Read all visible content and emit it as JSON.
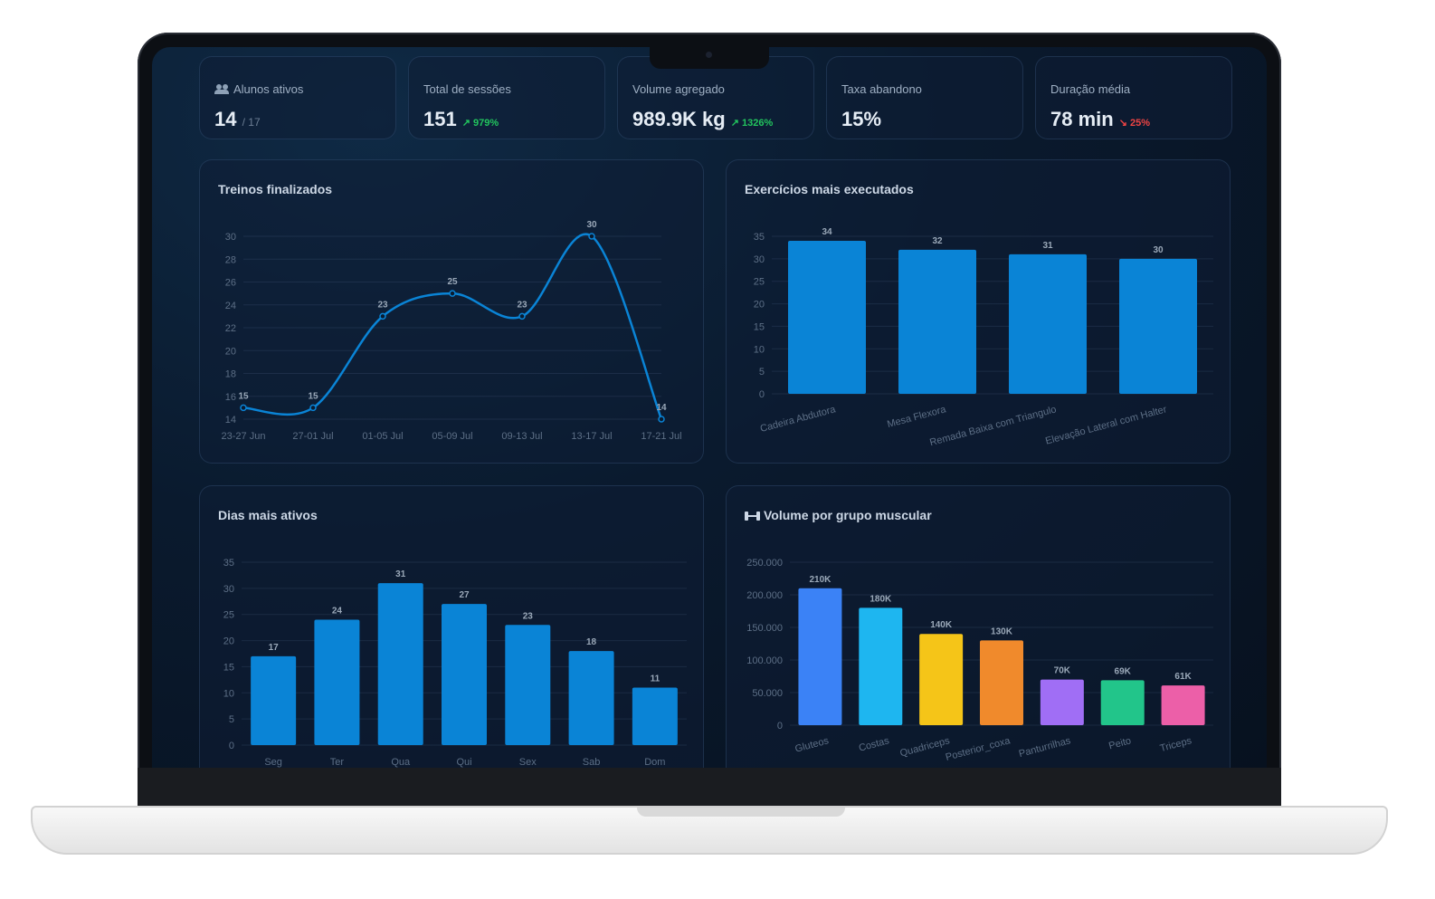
{
  "stats": [
    {
      "label": "Alunos ativos",
      "value": "14",
      "sub": "/ 17",
      "delta": "",
      "trend": "none",
      "icon": "users-icon"
    },
    {
      "label": "Total de sessões",
      "value": "151",
      "sub": "",
      "delta": "979%",
      "trend": "up"
    },
    {
      "label": "Volume agregado",
      "value": "989.9K kg",
      "sub": "",
      "delta": "1326%",
      "trend": "up"
    },
    {
      "label": "Taxa abandono",
      "value": "15%",
      "sub": "",
      "delta": "",
      "trend": "none"
    },
    {
      "label": "Duração média",
      "value": "78 min",
      "sub": "",
      "delta": "25%",
      "trend": "down"
    }
  ],
  "colors": {
    "accent": "#0a84d6",
    "line": "#0a84d6",
    "up": "#22c55e",
    "down": "#ef4444"
  },
  "chart_data": [
    {
      "type": "line",
      "title": "Treinos finalizados",
      "categories": [
        "23-27 Jun",
        "27-01 Jul",
        "01-05 Jul",
        "05-09 Jul",
        "09-13 Jul",
        "13-17 Jul",
        "17-21 Jul"
      ],
      "values": [
        15,
        15,
        23,
        25,
        23,
        30,
        14
      ],
      "ylim": [
        14,
        30
      ],
      "yticks": [
        14,
        16,
        18,
        20,
        22,
        24,
        26,
        28,
        30
      ],
      "grid": true
    },
    {
      "type": "bar",
      "title": "Exercícios mais executados",
      "categories": [
        "Cadeira Abdutora",
        "Mesa Flexora",
        "Remada Baixa com Triangulo",
        "Elevação Lateral com Halter"
      ],
      "values": [
        34,
        32,
        31,
        30
      ],
      "ylim": [
        0,
        35
      ],
      "yticks": [
        0,
        5,
        10,
        15,
        20,
        25,
        30,
        35
      ],
      "grid": true
    },
    {
      "type": "bar",
      "title": "Dias mais ativos",
      "categories": [
        "Seg",
        "Ter",
        "Qua",
        "Qui",
        "Sex",
        "Sab",
        "Dom"
      ],
      "values": [
        17,
        24,
        31,
        27,
        23,
        18,
        11
      ],
      "ylim": [
        0,
        35
      ],
      "yticks": [
        0,
        5,
        10,
        15,
        20,
        25,
        30,
        35
      ],
      "grid": true
    },
    {
      "type": "bar",
      "title": "Volume por grupo muscular",
      "categories": [
        "Gluteos",
        "Costas",
        "Quadriceps",
        "Posterior_coxa",
        "Panturrilhas",
        "Peito",
        "Triceps"
      ],
      "values": [
        210000,
        180000,
        140000,
        130000,
        70000,
        69000,
        61000
      ],
      "value_labels": [
        "210K",
        "180K",
        "140K",
        "130K",
        "70K",
        "69K",
        "61K"
      ],
      "bar_colors": [
        "#3b82f6",
        "#1eb6f0",
        "#f5c518",
        "#f08a2c",
        "#a06ef5",
        "#22c58a",
        "#ec5fa8"
      ],
      "ylim": [
        0,
        250000
      ],
      "yticks": [
        0,
        50000,
        100000,
        150000,
        200000,
        250000
      ],
      "ytick_labels": [
        "0",
        "50.000",
        "100.000",
        "150.000",
        "200.000",
        "250.000"
      ],
      "grid": true
    }
  ]
}
